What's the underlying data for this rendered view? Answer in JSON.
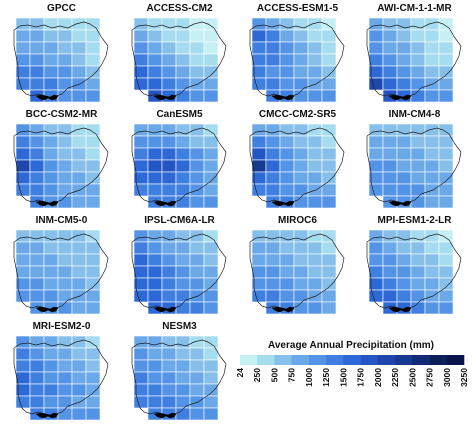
{
  "panels": [
    {
      "title": "GPCC",
      "values": [
        [
          2,
          2,
          1,
          1,
          1,
          1
        ],
        [
          3,
          3,
          2,
          2,
          1,
          1
        ],
        [
          3,
          3,
          3,
          2,
          2,
          1
        ],
        [
          4,
          4,
          3,
          3,
          2,
          1
        ],
        [
          5,
          5,
          4,
          4,
          3,
          2
        ],
        [
          5,
          5,
          5,
          4,
          4,
          3
        ],
        [
          0,
          6,
          5,
          4,
          4,
          4
        ]
      ]
    },
    {
      "title": "ACCESS-CM2",
      "values": [
        [
          2,
          1,
          1,
          1,
          0,
          0
        ],
        [
          3,
          2,
          1,
          1,
          0,
          0
        ],
        [
          4,
          3,
          2,
          1,
          1,
          0
        ],
        [
          5,
          4,
          3,
          2,
          1,
          1
        ],
        [
          6,
          5,
          4,
          3,
          2,
          2
        ],
        [
          6,
          6,
          5,
          4,
          3,
          3
        ],
        [
          0,
          7,
          6,
          5,
          4,
          4
        ]
      ]
    },
    {
      "title": "ACCESS-ESM1-5",
      "values": [
        [
          4,
          3,
          2,
          1,
          1,
          0
        ],
        [
          6,
          5,
          3,
          2,
          1,
          1
        ],
        [
          5,
          5,
          4,
          3,
          2,
          1
        ],
        [
          5,
          5,
          4,
          3,
          2,
          1
        ],
        [
          5,
          4,
          4,
          3,
          3,
          2
        ],
        [
          5,
          5,
          4,
          4,
          3,
          3
        ],
        [
          0,
          5,
          5,
          4,
          4,
          4
        ]
      ]
    },
    {
      "title": "AWI-CM-1-1-MR",
      "values": [
        [
          3,
          2,
          2,
          1,
          1,
          0
        ],
        [
          4,
          3,
          2,
          1,
          1,
          0
        ],
        [
          4,
          3,
          3,
          2,
          1,
          1
        ],
        [
          5,
          4,
          3,
          2,
          1,
          1
        ],
        [
          6,
          5,
          4,
          3,
          2,
          2
        ],
        [
          8,
          6,
          5,
          4,
          3,
          3
        ],
        [
          0,
          7,
          6,
          5,
          4,
          4
        ]
      ]
    },
    {
      "title": "BCC-CSM2-MR",
      "values": [
        [
          4,
          3,
          2,
          2,
          1,
          1
        ],
        [
          5,
          4,
          3,
          2,
          1,
          1
        ],
        [
          6,
          5,
          3,
          2,
          2,
          1
        ],
        [
          8,
          6,
          4,
          3,
          2,
          2
        ],
        [
          6,
          5,
          4,
          3,
          3,
          2
        ],
        [
          5,
          5,
          4,
          3,
          3,
          3
        ],
        [
          0,
          5,
          4,
          4,
          3,
          3
        ]
      ]
    },
    {
      "title": "CanESM5",
      "values": [
        [
          3,
          3,
          3,
          2,
          2,
          1
        ],
        [
          4,
          4,
          4,
          3,
          2,
          2
        ],
        [
          5,
          6,
          6,
          5,
          4,
          3
        ],
        [
          6,
          7,
          7,
          6,
          4,
          3
        ],
        [
          6,
          6,
          6,
          5,
          4,
          3
        ],
        [
          5,
          5,
          5,
          5,
          4,
          3
        ],
        [
          0,
          5,
          5,
          5,
          4,
          4
        ]
      ]
    },
    {
      "title": "CMCC-CM2-SR5",
      "values": [
        [
          3,
          3,
          2,
          2,
          1,
          1
        ],
        [
          5,
          4,
          3,
          2,
          2,
          1
        ],
        [
          7,
          5,
          4,
          3,
          2,
          2
        ],
        [
          9,
          6,
          4,
          3,
          2,
          2
        ],
        [
          6,
          5,
          4,
          3,
          3,
          2
        ],
        [
          5,
          5,
          4,
          4,
          3,
          3
        ],
        [
          0,
          5,
          5,
          4,
          4,
          4
        ]
      ]
    },
    {
      "title": "INM-CM4-8",
      "values": [
        [
          2,
          2,
          2,
          2,
          2,
          2
        ],
        [
          3,
          3,
          3,
          2,
          2,
          2
        ],
        [
          3,
          3,
          3,
          3,
          2,
          2
        ],
        [
          4,
          4,
          3,
          3,
          3,
          2
        ],
        [
          4,
          4,
          4,
          3,
          3,
          3
        ],
        [
          4,
          4,
          4,
          4,
          3,
          3
        ],
        [
          0,
          4,
          4,
          4,
          3,
          3
        ]
      ]
    },
    {
      "title": "INM-CM5-0",
      "values": [
        [
          2,
          2,
          2,
          2,
          2,
          1
        ],
        [
          3,
          3,
          2,
          2,
          2,
          2
        ],
        [
          3,
          3,
          3,
          2,
          2,
          2
        ],
        [
          3,
          3,
          3,
          3,
          2,
          2
        ],
        [
          4,
          4,
          3,
          3,
          3,
          2
        ],
        [
          4,
          4,
          4,
          3,
          3,
          3
        ],
        [
          0,
          4,
          4,
          4,
          3,
          3
        ]
      ]
    },
    {
      "title": "IPSL-CM6A-LR",
      "values": [
        [
          4,
          3,
          3,
          2,
          2,
          1
        ],
        [
          5,
          4,
          3,
          3,
          2,
          2
        ],
        [
          6,
          5,
          4,
          3,
          3,
          2
        ],
        [
          6,
          6,
          5,
          4,
          3,
          3
        ],
        [
          6,
          6,
          5,
          4,
          4,
          3
        ],
        [
          6,
          6,
          5,
          5,
          4,
          4
        ],
        [
          0,
          6,
          6,
          5,
          5,
          4
        ]
      ]
    },
    {
      "title": "MIROC6",
      "values": [
        [
          2,
          2,
          2,
          2,
          1,
          1
        ],
        [
          3,
          3,
          2,
          2,
          2,
          1
        ],
        [
          3,
          3,
          3,
          2,
          2,
          2
        ],
        [
          4,
          4,
          3,
          3,
          2,
          2
        ],
        [
          4,
          4,
          4,
          3,
          3,
          2
        ],
        [
          5,
          5,
          4,
          4,
          3,
          3
        ],
        [
          0,
          5,
          5,
          4,
          4,
          3
        ]
      ]
    },
    {
      "title": "MPI-ESM1-2-LR",
      "values": [
        [
          3,
          2,
          2,
          1,
          1,
          0
        ],
        [
          4,
          3,
          2,
          2,
          1,
          1
        ],
        [
          4,
          4,
          3,
          2,
          2,
          1
        ],
        [
          5,
          4,
          4,
          3,
          2,
          2
        ],
        [
          6,
          5,
          4,
          3,
          3,
          2
        ],
        [
          6,
          6,
          5,
          4,
          3,
          3
        ],
        [
          0,
          6,
          6,
          5,
          4,
          4
        ]
      ]
    },
    {
      "title": "MRI-ESM2-0",
      "values": [
        [
          4,
          3,
          3,
          2,
          2,
          1
        ],
        [
          5,
          4,
          3,
          3,
          2,
          2
        ],
        [
          5,
          5,
          4,
          3,
          3,
          2
        ],
        [
          6,
          5,
          4,
          4,
          3,
          3
        ],
        [
          6,
          5,
          5,
          4,
          4,
          3
        ],
        [
          5,
          5,
          4,
          4,
          3,
          3
        ],
        [
          0,
          5,
          5,
          4,
          4,
          4
        ]
      ]
    },
    {
      "title": "NESM3",
      "values": [
        [
          3,
          3,
          2,
          2,
          1,
          1
        ],
        [
          4,
          3,
          3,
          2,
          2,
          1
        ],
        [
          4,
          4,
          3,
          3,
          2,
          2
        ],
        [
          5,
          4,
          4,
          3,
          3,
          2
        ],
        [
          5,
          5,
          4,
          4,
          3,
          3
        ],
        [
          5,
          5,
          5,
          4,
          4,
          3
        ],
        [
          0,
          5,
          5,
          5,
          4,
          4
        ]
      ]
    }
  ],
  "legend": {
    "title": "Average Annual Precipitation (mm)",
    "ticks": [
      "24",
      "250",
      "500",
      "750",
      "1000",
      "1250",
      "1500",
      "1750",
      "2000",
      "2250",
      "2500",
      "2750",
      "3000",
      "3250"
    ],
    "colors": [
      "#c6f0f4",
      "#a6dcef",
      "#86c0ea",
      "#6aa8e8",
      "#5494e6",
      "#3f7fe0",
      "#2d69d6",
      "#2456c3",
      "#1e47ad",
      "#173990",
      "#112c74",
      "#0b1f5a",
      "#081447"
    ]
  },
  "map_style": {
    "outline": "#222222",
    "cell_border": "#ffffff",
    "land_outside": "#000000"
  }
}
